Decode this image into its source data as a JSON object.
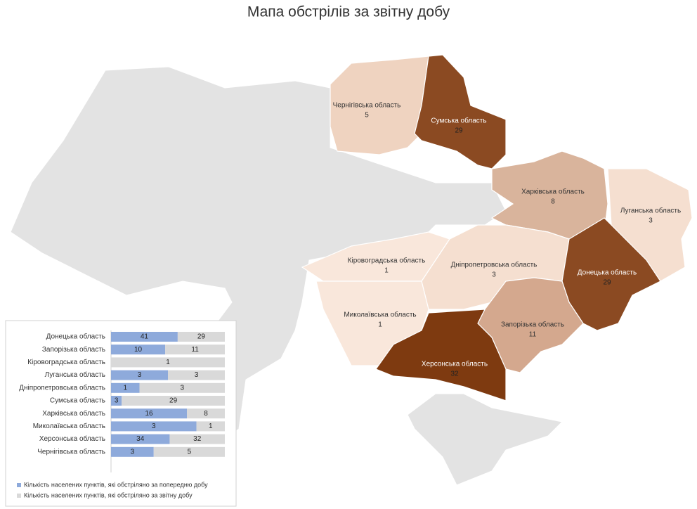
{
  "title": "Мапа обстрілів за звітну добу",
  "map": {
    "regions": [
      {
        "name": "Чернігівська область",
        "value": 5,
        "color": "#efd3c0"
      },
      {
        "name": "Сумська область",
        "value": 29,
        "color": "#8b4a22"
      },
      {
        "name": "Харківська область",
        "value": 8,
        "color": "#d9b49c"
      },
      {
        "name": "Луганська область",
        "value": 3,
        "color": "#f5dfd0"
      },
      {
        "name": "Кіровоградська область",
        "value": 1,
        "color": "#f9e7db"
      },
      {
        "name": "Дніпропетровська область",
        "value": 3,
        "color": "#f5dfd0"
      },
      {
        "name": "Донецька область",
        "value": 29,
        "color": "#8b4a22"
      },
      {
        "name": "Миколаївська область",
        "value": 1,
        "color": "#f9e7db"
      },
      {
        "name": "Запорізька область",
        "value": 11,
        "color": "#d4a88e"
      },
      {
        "name": "Херсонська область",
        "value": 32,
        "color": "#7e3a10"
      }
    ]
  },
  "chart_data": {
    "type": "bar",
    "orientation": "horizontal",
    "stacking": "percent",
    "categories": [
      "Донецька область",
      "Запорізька область",
      "Кіровоградська область",
      "Луганська область",
      "Дніпропетровська область",
      "Сумська область",
      "Харківська область",
      "Миколаївська область",
      "Херсонська область",
      "Чернігівська область"
    ],
    "series": [
      {
        "name": "Кількість населених пунктів, які обстріляно за попередню добу",
        "color": "#8eaadb",
        "values": [
          41,
          10,
          null,
          3,
          1,
          3,
          16,
          3,
          34,
          3
        ]
      },
      {
        "name": "Кількість населених пунктів, які обстріляно за звітну добу",
        "color": "#d9d9d9",
        "values": [
          29,
          11,
          1,
          3,
          3,
          29,
          8,
          1,
          32,
          5
        ]
      }
    ]
  }
}
